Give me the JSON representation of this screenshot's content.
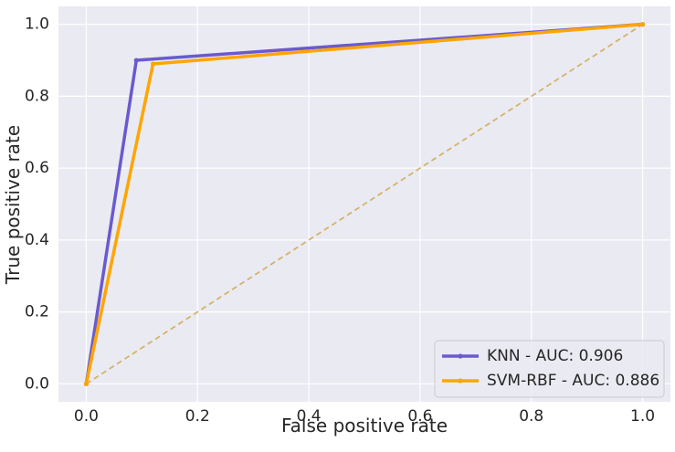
{
  "chart_data": {
    "type": "line",
    "title": "",
    "xlabel": "False positive rate",
    "ylabel": "True positive rate",
    "xlim": [
      -0.05,
      1.05
    ],
    "ylim": [
      -0.05,
      1.05
    ],
    "xticks": [
      0.0,
      0.2,
      0.4,
      0.6,
      0.8,
      1.0
    ],
    "yticks": [
      0.0,
      0.2,
      0.4,
      0.6,
      0.8,
      1.0
    ],
    "xtick_labels": [
      "0.0",
      "0.2",
      "0.4",
      "0.6",
      "0.8",
      "1.0"
    ],
    "ytick_labels": [
      "0.0",
      "0.2",
      "0.4",
      "0.6",
      "0.8",
      "1.0"
    ],
    "grid": true,
    "legend_position": "bottom-right",
    "background": "#eaeaf2",
    "series": [
      {
        "name": "KNN - AUC: 0.906",
        "color": "#6a5acd",
        "marker": "dot",
        "x": [
          0.0,
          0.09,
          1.0
        ],
        "y": [
          0.0,
          0.9,
          1.0
        ]
      },
      {
        "name": "SVM-RBF - AUC: 0.886",
        "color": "#ffa500",
        "marker": "dot",
        "x": [
          0.0,
          0.12,
          1.0
        ],
        "y": [
          0.0,
          0.89,
          1.0
        ]
      }
    ],
    "reference_line": {
      "x": [
        0.0,
        1.0
      ],
      "y": [
        0.0,
        1.0
      ],
      "color": "#d4b36a",
      "style": "dashed"
    }
  }
}
